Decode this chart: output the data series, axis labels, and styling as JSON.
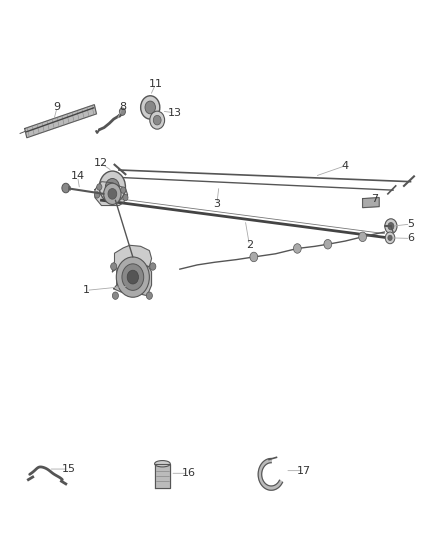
{
  "background_color": "#ffffff",
  "fig_width": 4.38,
  "fig_height": 5.33,
  "dpi": 100,
  "line_color": "#555555",
  "label_color": "#333333",
  "label_fontsize": 8.0
}
